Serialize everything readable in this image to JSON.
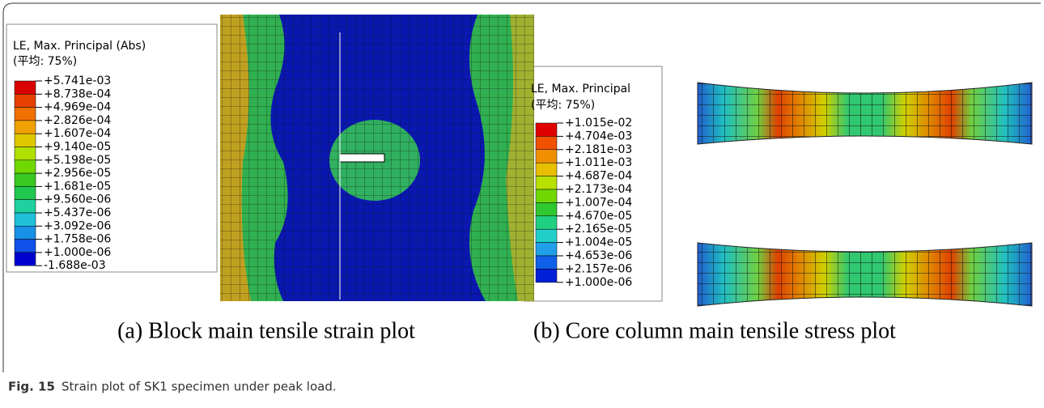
{
  "panels": [
    {
      "legend": {
        "title": "LE, Max. Principal (Abs)",
        "subtitle": "(平均: 75%)",
        "labels": [
          "+5.741e-03",
          "+8.738e-04",
          "+4.969e-04",
          "+2.826e-04",
          "+1.607e-04",
          "+9.140e-05",
          "+5.198e-05",
          "+2.956e-05",
          "+1.681e-05",
          "+9.560e-06",
          "+5.437e-06",
          "+3.092e-06",
          "+1.758e-06",
          "+1.000e-06",
          "-1.688e-03"
        ],
        "colors": [
          "#d80000",
          "#e84000",
          "#f07000",
          "#f0a000",
          "#e0c800",
          "#b0e000",
          "#70d800",
          "#38c820",
          "#20c850",
          "#20d0a0",
          "#20c0d8",
          "#1890e8",
          "#1050e8",
          "#0000d0"
        ]
      },
      "caption": "(a) Block main tensile strain plot"
    },
    {
      "legend": {
        "title": "LE, Max. Principal",
        "subtitle": "(平均: 75%)",
        "labels": [
          "+1.015e-02",
          "+4.704e-03",
          "+2.181e-03",
          "+1.011e-03",
          "+4.687e-04",
          "+2.173e-04",
          "+1.007e-04",
          "+4.670e-05",
          "+2.165e-05",
          "+1.004e-05",
          "+4.653e-06",
          "+2.157e-06",
          "+1.000e-06"
        ],
        "colors": [
          "#e00000",
          "#f05000",
          "#f09000",
          "#e8c000",
          "#b8e000",
          "#70d800",
          "#30c830",
          "#20d080",
          "#20d0c8",
          "#20a0e8",
          "#1060e8",
          "#0020d8"
        ]
      },
      "caption": "(b) Core column main tensile stress plot"
    }
  ],
  "figure_caption": {
    "label": "Fig. 15",
    "text": "Strain plot of SK1 specimen under peak load."
  }
}
